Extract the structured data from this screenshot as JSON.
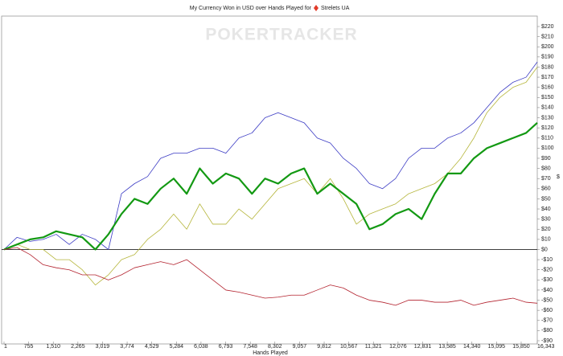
{
  "chart_data": {
    "type": "line",
    "title": "My Currency Won in USD over Hands Played for",
    "player": "Strelets UA",
    "watermark": "POKERTRACKER",
    "x_label": "Hands Played",
    "y_label": "$",
    "x": [
      1,
      400,
      800,
      1200,
      1600,
      2000,
      2400,
      2800,
      3200,
      3600,
      4000,
      4400,
      4800,
      5200,
      5600,
      6000,
      6400,
      6800,
      7200,
      7600,
      8000,
      8400,
      8800,
      9200,
      9600,
      10000,
      10400,
      10800,
      11200,
      11600,
      12000,
      12400,
      12800,
      13200,
      13600,
      14000,
      14400,
      14800,
      15200,
      15600,
      16000,
      16343
    ],
    "series": [
      {
        "color": "#3b3bc4",
        "values": [
          0,
          12,
          8,
          10,
          15,
          5,
          15,
          10,
          0,
          55,
          65,
          72,
          90,
          95,
          95,
          100,
          100,
          95,
          110,
          115,
          130,
          135,
          130,
          125,
          110,
          105,
          90,
          80,
          65,
          60,
          70,
          90,
          100,
          100,
          110,
          115,
          125,
          140,
          155,
          165,
          170,
          185
        ]
      },
      {
        "color": "#b5b53a",
        "values": [
          0,
          5,
          0,
          0,
          -10,
          -10,
          -20,
          -35,
          -25,
          -10,
          -5,
          10,
          20,
          35,
          20,
          45,
          25,
          25,
          40,
          30,
          45,
          60,
          65,
          70,
          55,
          70,
          50,
          25,
          35,
          40,
          45,
          55,
          60,
          65,
          75,
          90,
          110,
          135,
          150,
          160,
          165,
          180
        ]
      },
      {
        "color": "#139913",
        "values": [
          0,
          5,
          10,
          12,
          18,
          15,
          12,
          0,
          15,
          35,
          50,
          45,
          60,
          70,
          55,
          80,
          65,
          75,
          70,
          55,
          70,
          65,
          75,
          80,
          55,
          65,
          55,
          45,
          20,
          25,
          35,
          40,
          30,
          55,
          75,
          75,
          90,
          100,
          105,
          110,
          115,
          125
        ]
      },
      {
        "color": "#b3222e",
        "values": [
          0,
          2,
          -5,
          -15,
          -18,
          -20,
          -25,
          -25,
          -30,
          -25,
          -18,
          -15,
          -12,
          -15,
          -10,
          -20,
          -30,
          -40,
          -42,
          -45,
          -48,
          -47,
          -45,
          -45,
          -40,
          -35,
          -38,
          -45,
          -50,
          -52,
          -55,
          -50,
          -50,
          -52,
          -52,
          -50,
          -55,
          -52,
          -50,
          -48,
          -52,
          -53
        ]
      }
    ],
    "xlim": [
      1,
      16343
    ],
    "xticks": [
      1,
      755,
      {
        "value": 1510,
        "label": "1,510"
      },
      {
        "value": 2265,
        "label": "2,265"
      },
      {
        "value": 3019,
        "label": "3,019"
      },
      {
        "value": 3774,
        "label": "3,774"
      },
      {
        "value": 4529,
        "label": "4,529"
      },
      {
        "value": 5284,
        "label": "5,284"
      },
      {
        "value": 6038,
        "label": "6,038"
      },
      {
        "value": 6793,
        "label": "6,793"
      },
      {
        "value": 7548,
        "label": "7,548"
      },
      {
        "value": 8302,
        "label": "8,302"
      },
      {
        "value": 9057,
        "label": "9,057"
      },
      {
        "value": 9812,
        "label": "9,812"
      },
      {
        "value": 10567,
        "label": "10,567"
      },
      {
        "value": 11321,
        "label": "11,321"
      },
      {
        "value": 12076,
        "label": "12,076"
      },
      {
        "value": 12831,
        "label": "12,831"
      },
      {
        "value": 13585,
        "label": "13,585"
      },
      {
        "value": 14340,
        "label": "14,340"
      },
      {
        "value": 15095,
        "label": "15,095"
      },
      {
        "value": 15850,
        "label": "15,850"
      },
      {
        "value": 16343,
        "label": "16,343"
      }
    ],
    "ylim": [
      -90,
      220
    ],
    "yticks": [
      {
        "value": -90,
        "label": "-$90"
      },
      {
        "value": -80,
        "label": "-$80"
      },
      {
        "value": -70,
        "label": "-$70"
      },
      {
        "value": -60,
        "label": "-$60"
      },
      {
        "value": -50,
        "label": "-$50"
      },
      {
        "value": -40,
        "label": "-$40"
      },
      {
        "value": -30,
        "label": "-$30"
      },
      {
        "value": -20,
        "label": "-$20"
      },
      {
        "value": -10,
        "label": "-$10"
      },
      {
        "value": 0,
        "label": "$0"
      },
      {
        "value": 10,
        "label": "$10"
      },
      {
        "value": 20,
        "label": "$20"
      },
      {
        "value": 30,
        "label": "$30"
      },
      {
        "value": 40,
        "label": "$40"
      },
      {
        "value": 50,
        "label": "$50"
      },
      {
        "value": 60,
        "label": "$60"
      },
      {
        "value": 70,
        "label": "$70"
      },
      {
        "value": 80,
        "label": "$80"
      },
      {
        "value": 90,
        "label": "$90"
      },
      {
        "value": 100,
        "label": "$100"
      },
      {
        "value": 110,
        "label": "$110"
      },
      {
        "value": 120,
        "label": "$120"
      },
      {
        "value": 130,
        "label": "$130"
      },
      {
        "value": 140,
        "label": "$140"
      },
      {
        "value": 150,
        "label": "$150"
      },
      {
        "value": 160,
        "label": "$160"
      },
      {
        "value": 170,
        "label": "$170"
      },
      {
        "value": 180,
        "label": "$180"
      },
      {
        "value": 190,
        "label": "$190"
      },
      {
        "value": 200,
        "label": "$200"
      },
      {
        "value": 210,
        "label": "$210"
      },
      {
        "value": 220,
        "label": "$220"
      }
    ]
  }
}
